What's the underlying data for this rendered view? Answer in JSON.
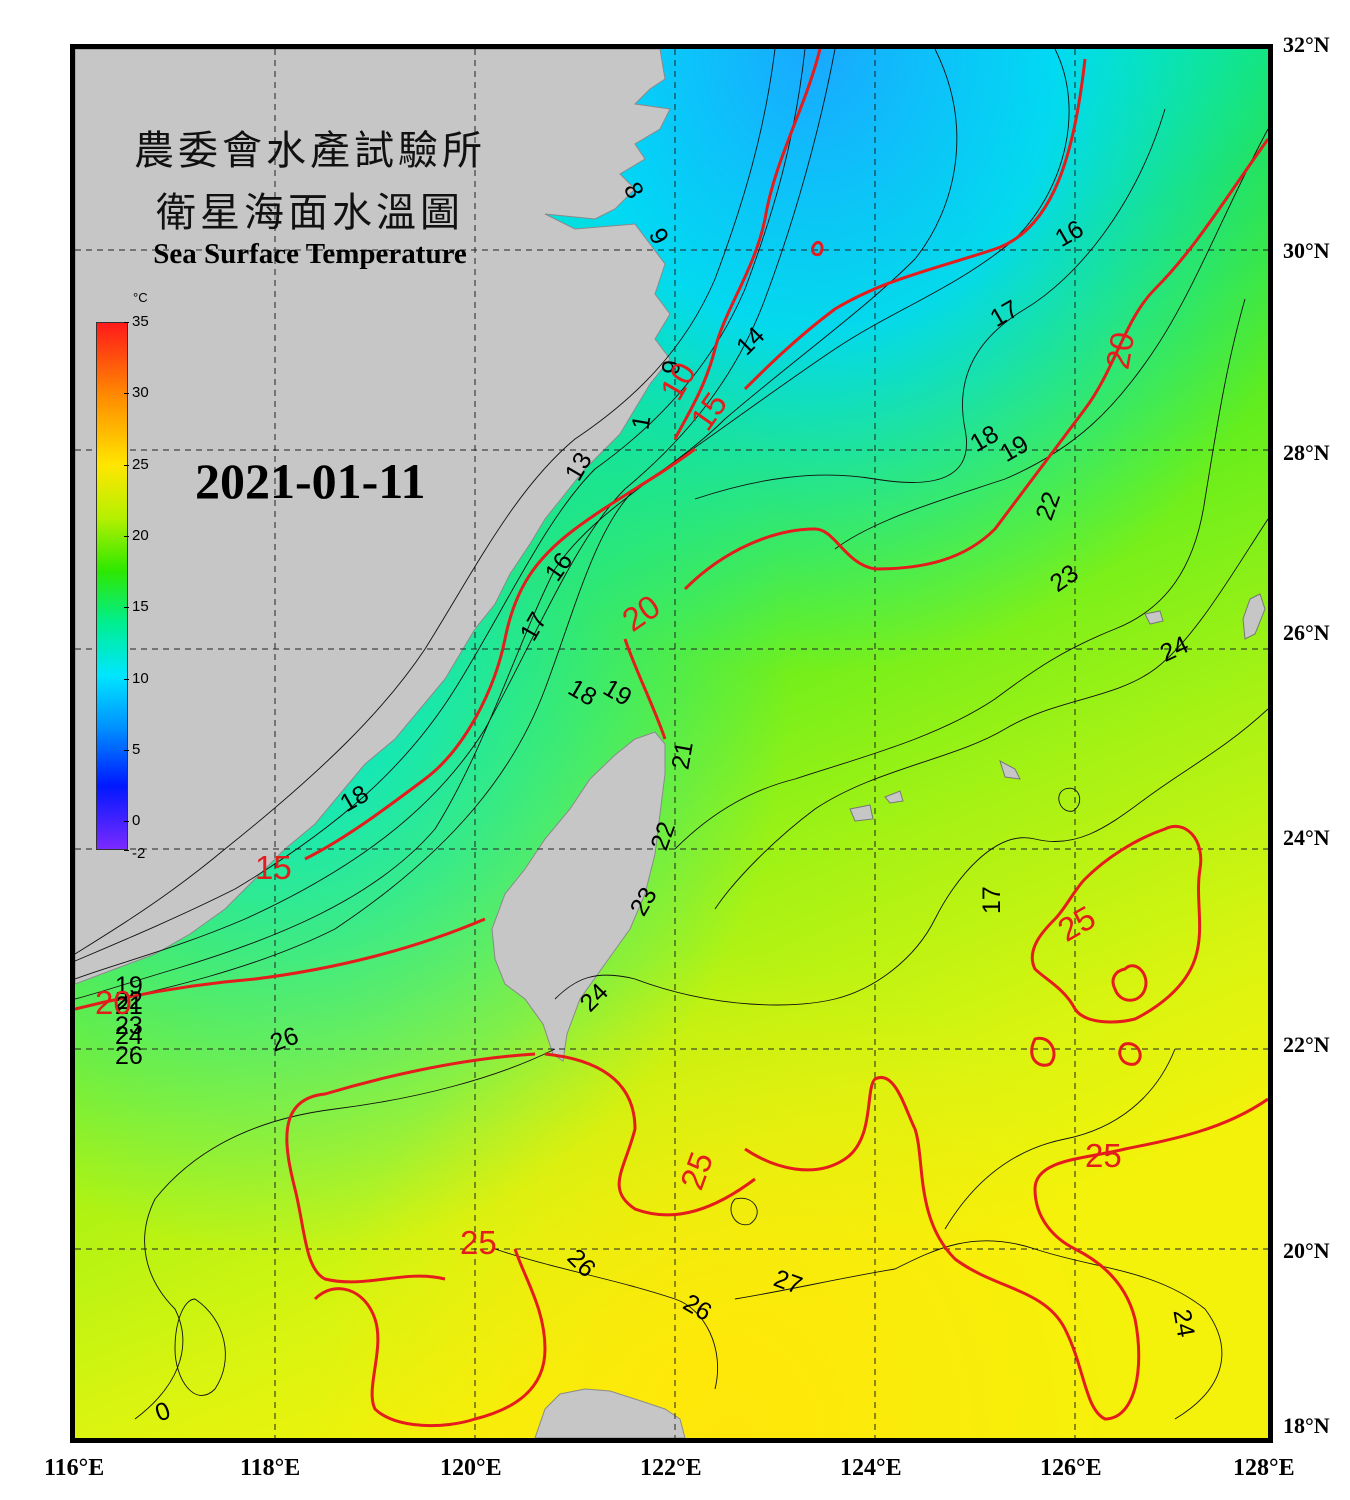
{
  "title": {
    "cn_line1": "農委會水產試驗所",
    "cn_line2": "衛星海面水溫圖",
    "en": "Sea Surface Temperature"
  },
  "date": "2021-01-11",
  "colorbar": {
    "unit": "°C",
    "min": -2,
    "max": 35,
    "ticks": [
      "35",
      "30",
      "25",
      "20",
      "15",
      "10",
      "5",
      "0",
      "-2"
    ]
  },
  "axes": {
    "longitude_labels": [
      "116°E",
      "118°E",
      "120°E",
      "122°E",
      "124°E",
      "126°E",
      "128°E"
    ],
    "latitude_labels": [
      "32°N",
      "30°N",
      "28°N",
      "26°N",
      "24°N",
      "22°N",
      "20°N",
      "18°N"
    ],
    "lon_range": [
      116,
      128
    ],
    "lat_range": [
      18,
      32
    ],
    "grid": "dashed"
  },
  "colors": {
    "land": "#c6c6c6",
    "isotherm_major": "#e51c1c",
    "isotherm_minor": "#000000",
    "cold_water": "#00e5ff",
    "warm_water": "#f2f700"
  },
  "isotherm_labels": {
    "black": [
      "8",
      "9",
      "14",
      "16",
      "17",
      "18",
      "19",
      "9",
      "1",
      "13",
      "16",
      "17",
      "18",
      "19",
      "21",
      "22",
      "23",
      "24",
      "22",
      "23",
      "24",
      "17",
      "18",
      "19",
      "21",
      "22",
      "23",
      "24",
      "26",
      "26",
      "26",
      "27",
      "24",
      "26",
      "0"
    ],
    "red": [
      "10",
      "15",
      "20",
      "20",
      "15",
      "20",
      "25",
      "25",
      "25",
      "25"
    ]
  }
}
